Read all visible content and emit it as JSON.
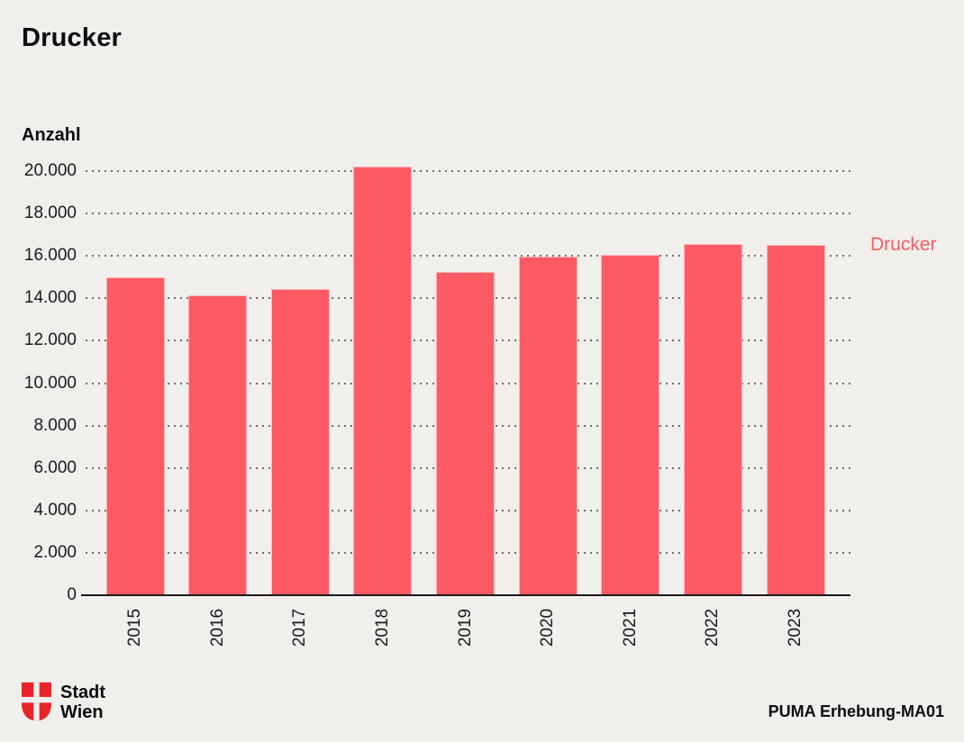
{
  "header": {
    "title": "Drucker"
  },
  "legend": {
    "label": "Drucker",
    "position": "right"
  },
  "footer": {
    "logo_line1": "Stadt",
    "logo_line2": "Wien",
    "source": "PUMA Erhebung-MA01"
  },
  "colors": {
    "background": "#f1efec",
    "bar": "#fd5a64",
    "legend_text": "#fd5a64",
    "logo_red": "#eb2228",
    "text": "#141414",
    "grid_dots": "#6e6c69",
    "axis_line": "#1a1a1a"
  },
  "chart_data": {
    "type": "bar",
    "title": "Drucker",
    "xlabel": "",
    "ylabel": "Anzahl",
    "categories": [
      "2015",
      "2016",
      "2017",
      "2018",
      "2019",
      "2020",
      "2021",
      "2022",
      "2023"
    ],
    "series": [
      {
        "name": "Drucker",
        "values": [
          15000,
          14150,
          14450,
          20200,
          15250,
          15950,
          16050,
          16550,
          16500
        ]
      }
    ],
    "ylim": [
      0,
      20000
    ],
    "y_ticks": [
      {
        "value": 0,
        "label": "0"
      },
      {
        "value": 2000,
        "label": "2.000"
      },
      {
        "value": 4000,
        "label": "4.000"
      },
      {
        "value": 6000,
        "label": "6.000"
      },
      {
        "value": 8000,
        "label": "8.000"
      },
      {
        "value": 10000,
        "label": "10.000"
      },
      {
        "value": 12000,
        "label": "12.000"
      },
      {
        "value": 14000,
        "label": "14.000"
      },
      {
        "value": 16000,
        "label": "16.000"
      },
      {
        "value": 18000,
        "label": "18.000"
      },
      {
        "value": 20000,
        "label": "20.000"
      }
    ],
    "grid": "horizontal-dotted",
    "legend_position": "right",
    "x_tick_rotation": -90
  }
}
